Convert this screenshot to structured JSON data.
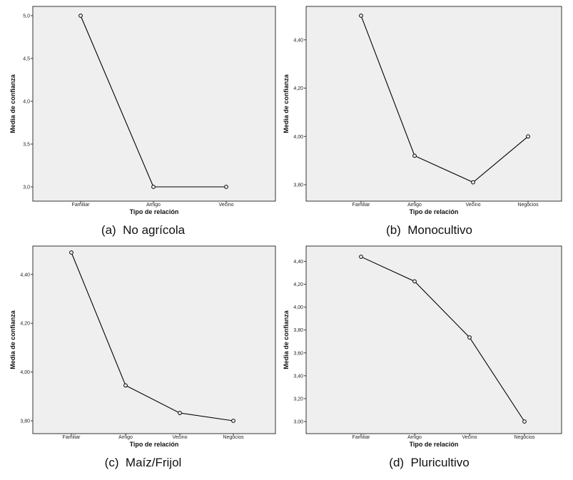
{
  "panels": [
    {
      "caption": "(a)  No agrícola",
      "chart_data": {
        "type": "line",
        "categories": [
          "Familiar",
          "Amigo",
          "Vecino"
        ],
        "values": [
          5.0,
          3.0,
          3.0
        ],
        "xlabel": "Tipo de relación",
        "ylabel": "Media de confianza",
        "ylim": [
          3.0,
          5.0
        ],
        "yticks": [
          3.0,
          3.5,
          4.0,
          4.5,
          5.0
        ],
        "ytick_labels": [
          "3,0",
          "3,5",
          "4,0",
          "4,5",
          "5,0"
        ],
        "grid": false
      }
    },
    {
      "caption": "(b)  Monocultivo",
      "chart_data": {
        "type": "line",
        "categories": [
          "Familiar",
          "Amigo",
          "Vecino",
          "Negocios"
        ],
        "values": [
          4.5,
          3.92,
          3.81,
          4.0
        ],
        "xlabel": "Tipo de relación",
        "ylabel": "Media de confianza",
        "ylim": [
          3.8,
          4.5
        ],
        "yticks": [
          3.8,
          4.0,
          4.2,
          4.4
        ],
        "ytick_labels": [
          "3,80",
          "4,00",
          "4,20",
          "4,40"
        ],
        "grid": false
      }
    },
    {
      "caption": "(c)  Maíz/Frijol",
      "chart_data": {
        "type": "line",
        "categories": [
          "Familiar",
          "Amigo",
          "Vecino",
          "Negocios"
        ],
        "values": [
          4.49,
          3.945,
          3.832,
          3.8
        ],
        "xlabel": "Tipo de relación",
        "ylabel": "Media de confianza",
        "ylim": [
          3.8,
          4.49
        ],
        "yticks": [
          3.8,
          4.0,
          4.2,
          4.4
        ],
        "ytick_labels": [
          "3,80",
          "4,00",
          "4,20",
          "4,40"
        ],
        "grid": false
      }
    },
    {
      "caption": "(d)  Pluricultivo",
      "chart_data": {
        "type": "line",
        "categories": [
          "Familiar",
          "Amigo",
          "Vecino",
          "Negocios"
        ],
        "values": [
          4.44,
          4.225,
          3.735,
          3.0
        ],
        "xlabel": "Tipo de relación",
        "ylabel": "Media de confianza",
        "ylim": [
          3.0,
          4.44
        ],
        "yticks": [
          3.0,
          3.2,
          3.4,
          3.6,
          3.8,
          4.0,
          4.2,
          4.4
        ],
        "ytick_labels": [
          "3,00",
          "3,20",
          "3,40",
          "3,60",
          "3,80",
          "4,00",
          "4,20",
          "4,40"
        ],
        "grid": false
      }
    }
  ]
}
